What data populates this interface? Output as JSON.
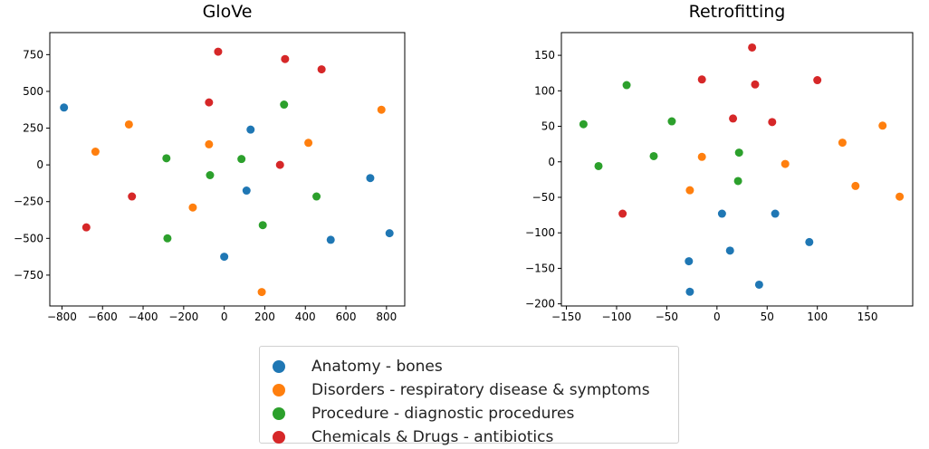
{
  "chart_data": [
    {
      "type": "scatter",
      "title": "GloVe",
      "xlim": [
        -860,
        890
      ],
      "ylim": [
        -960,
        900
      ],
      "xticks": [
        -800,
        -600,
        -400,
        -200,
        0,
        200,
        400,
        600,
        800
      ],
      "yticks": [
        -750,
        -500,
        -250,
        0,
        250,
        500,
        750
      ],
      "xtick_labels": [
        "−800",
        "−600",
        "−400",
        "−200",
        "0",
        "200",
        "400",
        "600",
        "800"
      ],
      "ytick_labels": [
        "−750",
        "−500",
        "−250",
        "0",
        "250",
        "500",
        "750"
      ],
      "grid": false,
      "series": [
        {
          "name": "Anatomy - bones",
          "points": [
            [
              -790,
              390
            ],
            [
              130,
              240
            ],
            [
              720,
              -90
            ],
            [
              110,
              -175
            ],
            [
              525,
              -510
            ],
            [
              815,
              -465
            ],
            [
              0,
              -625
            ]
          ]
        },
        {
          "name": "Disorders - respiratory disease & symptoms",
          "points": [
            [
              -470,
              275
            ],
            [
              -635,
              90
            ],
            [
              -75,
              140
            ],
            [
              415,
              150
            ],
            [
              775,
              375
            ],
            [
              -155,
              -290
            ],
            [
              185,
              -865
            ]
          ]
        },
        {
          "name": "Procedure - diagnostic procedures",
          "points": [
            [
              295,
              410
            ],
            [
              -285,
              45
            ],
            [
              85,
              40
            ],
            [
              -70,
              -70
            ],
            [
              455,
              -215
            ],
            [
              190,
              -410
            ],
            [
              -280,
              -500
            ]
          ]
        },
        {
          "name": "Chemicals & Drugs - antibiotics",
          "points": [
            [
              -30,
              770
            ],
            [
              300,
              720
            ],
            [
              480,
              650
            ],
            [
              -75,
              425
            ],
            [
              275,
              0
            ],
            [
              -455,
              -215
            ],
            [
              -680,
              -425
            ]
          ]
        }
      ]
    },
    {
      "type": "scatter",
      "title": "Retrofitting",
      "xlim": [
        -155,
        195
      ],
      "ylim": [
        -203,
        182
      ],
      "xticks": [
        -150,
        -100,
        -50,
        0,
        50,
        100,
        150
      ],
      "yticks": [
        -200,
        -150,
        -100,
        -50,
        0,
        50,
        100,
        150
      ],
      "xtick_labels": [
        "−150",
        "−100",
        "−50",
        "0",
        "50",
        "100",
        "150"
      ],
      "ytick_labels": [
        "−200",
        "−150",
        "−100",
        "−50",
        "0",
        "50",
        "100",
        "150"
      ],
      "grid": false,
      "series": [
        {
          "name": "Anatomy - bones",
          "points": [
            [
              5,
              -73
            ],
            [
              58,
              -73
            ],
            [
              13,
              -125
            ],
            [
              92,
              -113
            ],
            [
              -28,
              -140
            ],
            [
              42,
              -173
            ],
            [
              -27,
              -183
            ]
          ]
        },
        {
          "name": "Disorders - respiratory disease & symptoms",
          "points": [
            [
              -15,
              7
            ],
            [
              68,
              -3
            ],
            [
              125,
              27
            ],
            [
              165,
              51
            ],
            [
              -27,
              -40
            ],
            [
              138,
              -34
            ],
            [
              182,
              -49
            ]
          ]
        },
        {
          "name": "Procedure - diagnostic procedures",
          "points": [
            [
              -90,
              108
            ],
            [
              -133,
              53
            ],
            [
              -45,
              57
            ],
            [
              -118,
              -6
            ],
            [
              -63,
              8
            ],
            [
              22,
              13
            ],
            [
              21,
              -27
            ]
          ]
        },
        {
          "name": "Chemicals & Drugs - antibiotics",
          "points": [
            [
              35,
              161
            ],
            [
              -15,
              116
            ],
            [
              38,
              109
            ],
            [
              100,
              115
            ],
            [
              16,
              61
            ],
            [
              55,
              56
            ],
            [
              -94,
              -73
            ]
          ]
        }
      ]
    }
  ],
  "colors": [
    "#1f77b4",
    "#ff7f0e",
    "#2ca02c",
    "#d62728"
  ],
  "legend": {
    "placement": "bottom-center",
    "items": [
      "Anatomy - bones",
      "Disorders - respiratory disease & symptoms",
      "Procedure - diagnostic procedures",
      "Chemicals & Drugs - antibiotics"
    ]
  }
}
